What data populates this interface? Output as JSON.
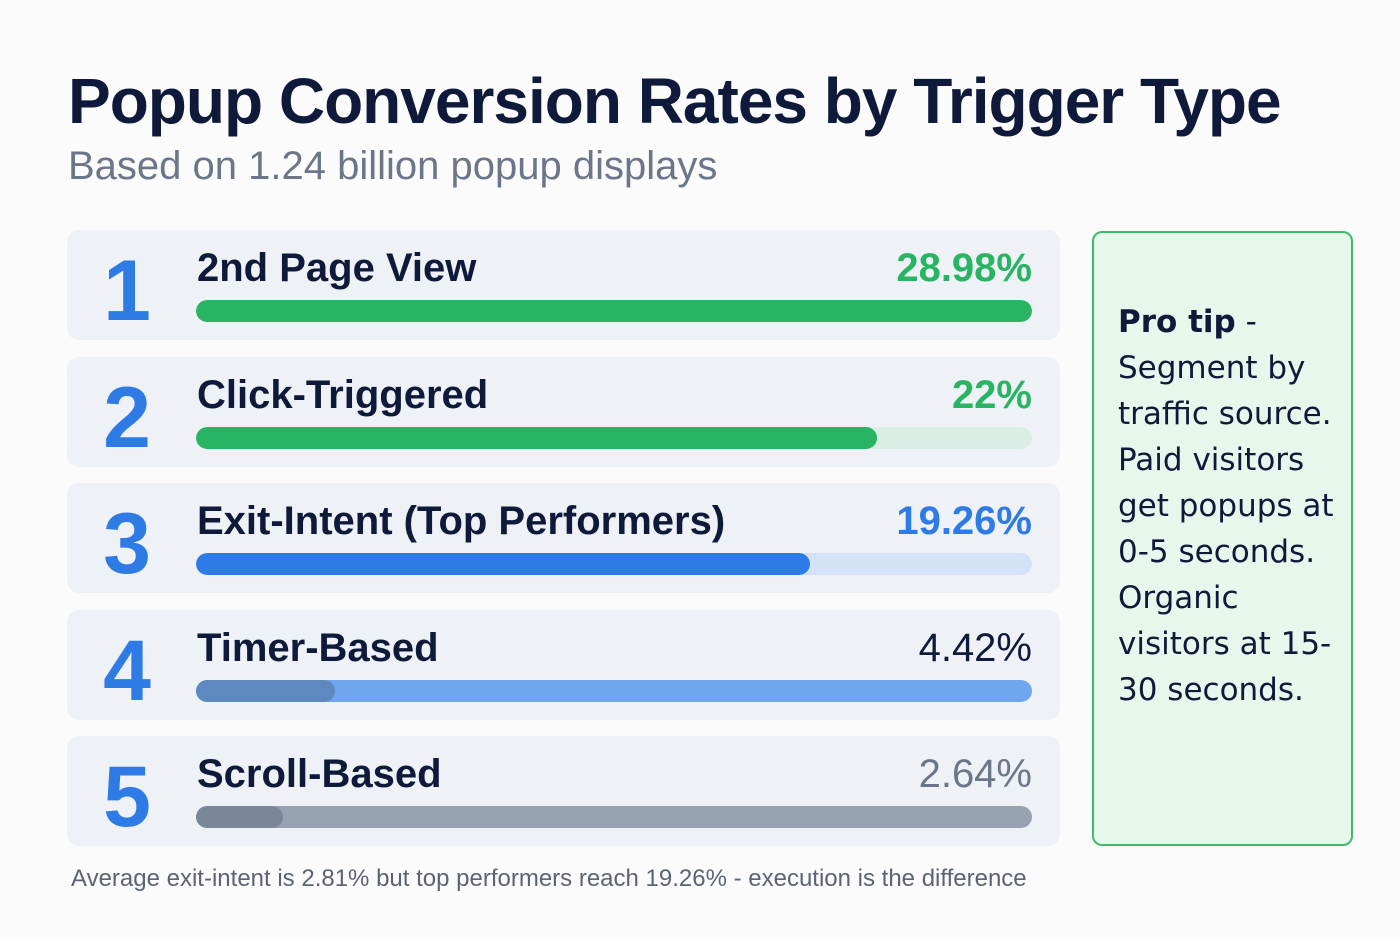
{
  "chart_data": {
    "type": "bar",
    "title": "Popup Conversion Rates by Trigger Type",
    "subtitle": "Based on 1.24 billion popup displays",
    "rows": [
      {
        "rank": "1",
        "label": "2nd Page View",
        "value_label": "28.98%",
        "value": 28.98,
        "fill_percent": 100,
        "bar_color": "#28b463",
        "track_color": "#dbeee3",
        "value_color": "#28b463",
        "secondary_fill_percent": 0
      },
      {
        "rank": "2",
        "label": "Click-Triggered",
        "value_label": "22%",
        "value": 22,
        "fill_percent": 81.5,
        "bar_color": "#28b463",
        "track_color": "#dbeee3",
        "value_color": "#28b463",
        "secondary_fill_percent": 0
      },
      {
        "rank": "3",
        "label": "Exit-Intent (Top Performers)",
        "value_label": "19.26%",
        "value": 19.26,
        "fill_percent": 73.4,
        "bar_color": "#2f7be6",
        "track_color": "#d3e2f7",
        "value_color": "#2f7be6",
        "secondary_fill_percent": 0
      },
      {
        "rank": "4",
        "label": "Timer-Based",
        "value_label": "4.42%",
        "value": 4.42,
        "fill_percent": 16.6,
        "bar_color": "#5e88c0",
        "track_color": "#6fa6ee",
        "value_color": "#0f1a3a"
      },
      {
        "rank": "5",
        "label": "Scroll-Based",
        "value_label": "2.64%",
        "value": 2.64,
        "fill_percent": 10.4,
        "bar_color": "#7a8799",
        "track_color": "#97a3b3",
        "value_color": "#6b7789"
      }
    ],
    "footer": "Average exit-intent is 2.81% but top performers reach 19.26% - execution is the difference"
  },
  "tip": {
    "heading": "Pro tip",
    "separator": " - ",
    "body": "Segment by traffic source. Paid visitors get popups at 0-5 seconds. Organic visitors at 15-30 seconds."
  },
  "colors": {
    "accent_blue": "#2f7be6",
    "accent_green": "#28b463",
    "tip_border": "#3dbb6b",
    "tip_bg": "#e7f7ec"
  }
}
